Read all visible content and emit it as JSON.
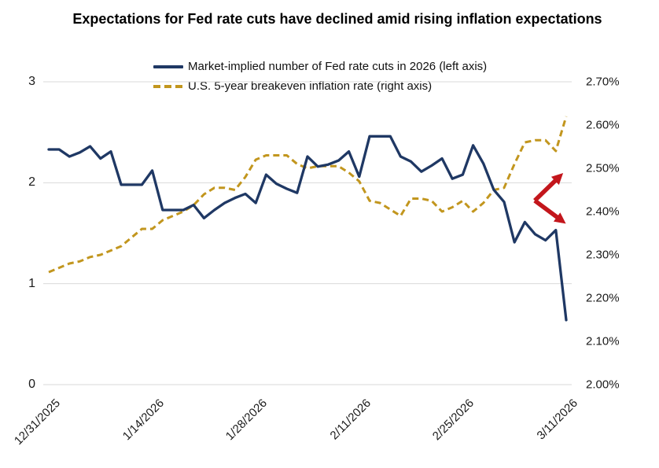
{
  "title": "Expectations for Fed rate cuts have declined amid rising inflation expectations",
  "colors": {
    "fed_cuts_line": "#1F3864",
    "breakeven_line": "#C2961E",
    "annotation_arrows": "#C3161C",
    "gridline": "#D9D9D9",
    "axis_text": "#1a1a1a"
  },
  "left_axis": {
    "tick_labels": [
      "3",
      "2",
      "1",
      "0"
    ],
    "tick_values": [
      3,
      2,
      1,
      0
    ]
  },
  "right_axis": {
    "tick_labels": [
      "2.70%",
      "2.60%",
      "2.50%",
      "2.40%",
      "2.30%",
      "2.20%",
      "2.10%",
      "2.00%"
    ],
    "tick_values": [
      2.7,
      2.6,
      2.5,
      2.4,
      2.3,
      2.2,
      2.1,
      2.0
    ]
  },
  "x_axis": {
    "tick_labels": [
      "12/31/2025",
      "1/14/2026",
      "1/28/2026",
      "2/11/2026",
      "2/25/2026",
      "3/11/2026"
    ],
    "tick_point_indices": [
      0,
      10,
      20,
      30,
      40,
      50
    ]
  },
  "annotation": {
    "type": "diverging-arrows",
    "description": "Red arrows highlighting divergence: inflation expectations up, rate-cut expectations down",
    "color": "#C3161C"
  },
  "chart_data": {
    "type": "line",
    "title": "Expectations for Fed rate cuts have declined amid rising inflation expectations",
    "x_tick_labels": [
      "12/31/2025",
      "1/14/2026",
      "1/28/2026",
      "2/11/2026",
      "2/25/2026",
      "3/11/2026"
    ],
    "x_frequency": "weekdays",
    "points_per_series": 51,
    "grid": "horizontal-only",
    "legend_position": "top-center",
    "left_ylim": [
      0,
      3
    ],
    "right_ylim": [
      2.0,
      2.7
    ],
    "series": [
      {
        "name": "Market-implied number of Fed rate cuts in 2026 (left axis)",
        "axis": "left",
        "color": "#1F3864",
        "line_style": "solid",
        "values": [
          2.33,
          2.33,
          2.26,
          2.3,
          2.36,
          2.24,
          2.31,
          1.98,
          1.98,
          1.98,
          2.12,
          1.73,
          1.73,
          1.73,
          1.78,
          1.65,
          1.73,
          1.8,
          1.85,
          1.89,
          1.8,
          2.08,
          1.99,
          1.94,
          1.9,
          2.26,
          2.16,
          2.18,
          2.22,
          2.31,
          2.06,
          2.46,
          2.46,
          2.46,
          2.26,
          2.21,
          2.11,
          2.17,
          2.24,
          2.04,
          2.08,
          2.37,
          2.19,
          1.93,
          1.81,
          1.41,
          1.61,
          1.49,
          1.43,
          1.53,
          0.64
        ]
      },
      {
        "name": "U.S. 5-year breakeven inflation rate (right axis)",
        "axis": "right",
        "color": "#C2961E",
        "line_style": "dashed",
        "values": [
          2.26,
          2.27,
          2.28,
          2.285,
          2.295,
          2.3,
          2.31,
          2.32,
          2.34,
          2.36,
          2.36,
          2.38,
          2.39,
          2.4,
          2.415,
          2.44,
          2.455,
          2.455,
          2.45,
          2.48,
          2.52,
          2.53,
          2.53,
          2.53,
          2.51,
          2.5,
          2.505,
          2.505,
          2.505,
          2.49,
          2.47,
          2.425,
          2.42,
          2.405,
          2.39,
          2.43,
          2.43,
          2.425,
          2.4,
          2.41,
          2.425,
          2.4,
          2.42,
          2.45,
          2.455,
          2.51,
          2.56,
          2.565,
          2.565,
          2.54,
          2.62
        ]
      }
    ]
  }
}
